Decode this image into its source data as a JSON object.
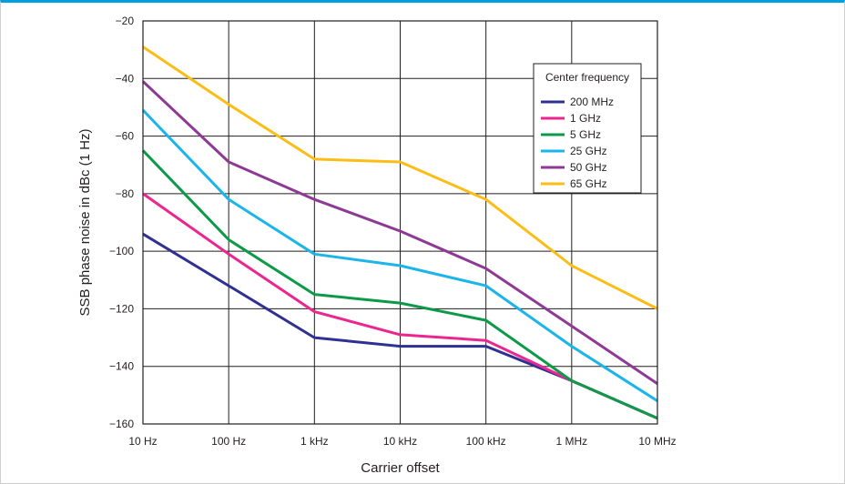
{
  "chart_data": {
    "type": "line",
    "title": "",
    "xlabel": "Carrier offset",
    "ylabel": "SSB phase noise in dBc (1 Hz)",
    "x_scale": "log",
    "categories": [
      "10 Hz",
      "100 Hz",
      "1 kHz",
      "10 kHz",
      "100 kHz",
      "1 MHz",
      "10 MHz"
    ],
    "ylim": [
      -160,
      -20
    ],
    "yticks": [
      -20,
      -40,
      -60,
      -80,
      -100,
      -120,
      -140,
      -160
    ],
    "grid": true,
    "legend": {
      "title": "Center frequency",
      "position": "top-right"
    },
    "series": [
      {
        "name": "200 MHz",
        "color": "#2e3092",
        "values": [
          -94,
          -112,
          -130,
          -133,
          -133,
          -145,
          -158
        ]
      },
      {
        "name": "1 GHz",
        "color": "#ec268f",
        "values": [
          -80,
          -101,
          -121,
          -129,
          -131,
          -145,
          -158
        ]
      },
      {
        "name": "5 GHz",
        "color": "#0d9a48",
        "values": [
          -65,
          -96,
          -115,
          -118,
          -124,
          -145,
          -158
        ]
      },
      {
        "name": "25 GHz",
        "color": "#1cb5ea",
        "values": [
          -51,
          -82,
          -101,
          -105,
          -112,
          -133,
          -152
        ]
      },
      {
        "name": "50 GHz",
        "color": "#8e3a94",
        "values": [
          -41,
          -69,
          -82,
          -93,
          -106,
          -126,
          -146
        ]
      },
      {
        "name": "65 GHz",
        "color": "#fbbd16",
        "values": [
          -29,
          -49,
          -68,
          -69,
          -82,
          -105,
          -120
        ]
      }
    ]
  }
}
